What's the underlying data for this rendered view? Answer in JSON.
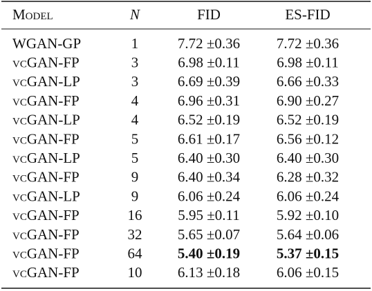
{
  "table": {
    "header": [
      "Model",
      "N",
      "FID",
      "ES-FID"
    ],
    "rows": [
      {
        "model": "WGAN-GP",
        "n": 1,
        "fid": "7.72 ±0.36",
        "es_fid": "7.72 ±0.36"
      },
      {
        "model": "vcGAN-FP",
        "n": 3,
        "fid": "6.98 ±0.11",
        "es_fid": "6.98 ±0.11"
      },
      {
        "model": "vcGAN-LP",
        "n": 3,
        "fid": "6.69 ±0.39",
        "es_fid": "6.66 ±0.33"
      },
      {
        "model": "vcGAN-FP",
        "n": 4,
        "fid": "6.96 ±0.31",
        "es_fid": "6.90 ±0.27"
      },
      {
        "model": "vcGAN-LP",
        "n": 4,
        "fid": "6.52 ±0.19",
        "es_fid": "6.52 ±0.19"
      },
      {
        "model": "vcGAN-FP",
        "n": 5,
        "fid": "6.61 ±0.17",
        "es_fid": "6.56 ±0.12"
      },
      {
        "model": "vcGAN-LP",
        "n": 5,
        "fid": "6.40 ±0.30",
        "es_fid": "6.40 ±0.30"
      },
      {
        "model": "vcGAN-FP",
        "n": 9,
        "fid": "6.40 ±0.34",
        "es_fid": "6.28 ±0.32"
      },
      {
        "model": "vcGAN-LP",
        "n": 9,
        "fid": "6.06 ±0.24",
        "es_fid": "6.06 ±0.24"
      },
      {
        "model": "vcGAN-FP",
        "n": 16,
        "fid": "5.95 ±0.11",
        "es_fid": "5.92 ±0.10"
      },
      {
        "model": "vcGAN-FP",
        "n": 32,
        "fid": "5.65 ±0.07",
        "es_fid": "5.64 ±0.06"
      },
      {
        "model": "vcGAN-FP",
        "n": 64,
        "fid": "5.40 ±0.19",
        "es_fid": "5.37 ±0.15",
        "bold": true
      },
      {
        "model": "vcGAN-FP",
        "n": 10,
        "fid": "6.13 ±0.18",
        "es_fid": "6.06 ±0.15"
      }
    ]
  }
}
